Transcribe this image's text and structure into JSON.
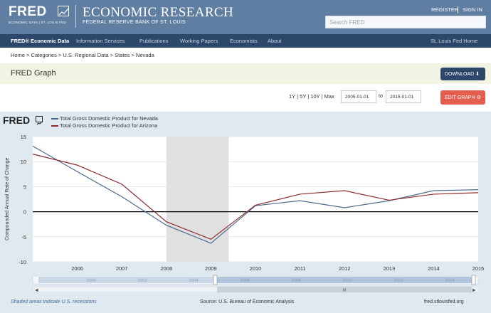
{
  "header": {
    "logo": "FRED",
    "logo_sub": "ECONOMIC DATA  |  ST. LOUIS FED",
    "title": "ECONOMIC RESEARCH",
    "subtitle": "FEDERAL RESERVE BANK OF ST. LOUIS",
    "register": "REGISTER",
    "signin": "SIGN IN",
    "search_placeholder": "Search FRED"
  },
  "nav": {
    "items": [
      "FRED® Economic Data",
      "Information Services",
      "Publications",
      "Working Papers",
      "Economists",
      "About"
    ],
    "right": "St. Louis Fed Home"
  },
  "breadcrumb": "Home > Categories > U.S. Regional Data > States > Nevada",
  "graph_bar": {
    "title": "FRED Graph",
    "download_label": "DOWNLOAD ⬇"
  },
  "controls": {
    "ranges": "1Y | 5Y | 10Y | Max",
    "start_date": "2005-01-01",
    "to_label": "to",
    "end_date": "2015-01-01",
    "edit_label": "EDIT GRAPH ⚙"
  },
  "footer": {
    "recession_note": "Shaded areas indicate U.S. recessions",
    "source": "Source: U.S. Bureau of Economic Analysis",
    "url": "fred.stlouisfed.org"
  },
  "navigator": {
    "years": [
      "2000",
      "2002",
      "2004",
      "2006",
      "2008",
      "2010",
      "2012",
      "2014"
    ],
    "handle": "III"
  },
  "colors": {
    "header_bg": "#5f7ea1",
    "nav_bg": "#2d476a",
    "nevada_line": "#4b6a8d",
    "arizona_line": "#8b2d2f",
    "recession_shade": "#e0e0e0",
    "edit_button": "#e35e4e"
  },
  "chart_data": {
    "type": "line",
    "logo": "FRED",
    "ylabel": "Compounded Annual Rate of Change",
    "x": [
      2005,
      2006,
      2007,
      2008,
      2009,
      2010,
      2011,
      2012,
      2013,
      2014,
      2015
    ],
    "x_ticks": [
      "2006",
      "2007",
      "2008",
      "2009",
      "2010",
      "2011",
      "2012",
      "2013",
      "2014",
      "2015"
    ],
    "y_ticks": [
      "15",
      "10",
      "5",
      "0",
      "-5",
      "-10"
    ],
    "ylim": [
      -10,
      15
    ],
    "xlim": [
      2005,
      2015
    ],
    "recession_shading": [
      [
        2008.0,
        2009.4
      ]
    ],
    "grid": "horizontal",
    "series": [
      {
        "name": "Total Gross Domestic Product for Nevada",
        "values": [
          13.1,
          8.0,
          3.0,
          -2.7,
          -6.3,
          1.2,
          2.2,
          0.8,
          2.2,
          4.2,
          4.4
        ]
      },
      {
        "name": "Total Gross Domestic Product for Arizona",
        "values": [
          11.5,
          9.3,
          5.5,
          -2.0,
          -5.5,
          1.3,
          3.5,
          4.2,
          2.3,
          3.5,
          3.8
        ]
      }
    ]
  }
}
